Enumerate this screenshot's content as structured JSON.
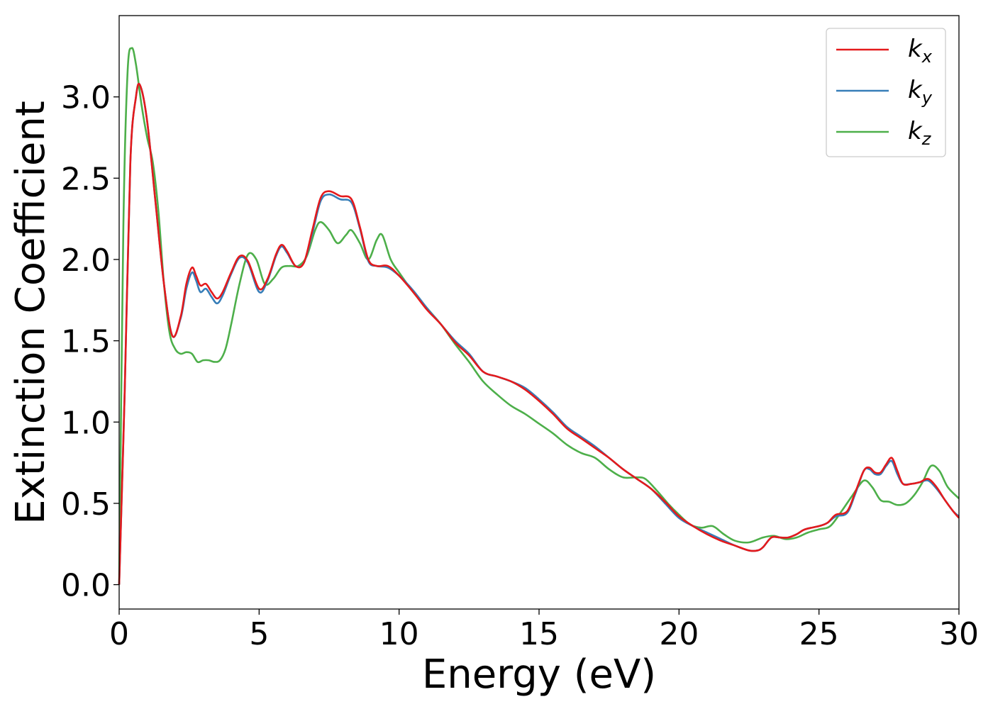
{
  "chart_data": {
    "type": "line",
    "xlabel": "Energy (eV)",
    "ylabel": "Extinction Coefficient",
    "xlim": [
      0,
      30
    ],
    "ylim": [
      -0.15,
      3.5
    ],
    "x_ticks": [
      0,
      5,
      10,
      15,
      20,
      25,
      30
    ],
    "x_tick_labels": [
      "0",
      "5",
      "10",
      "15",
      "20",
      "25",
      "30"
    ],
    "y_ticks": [
      0.0,
      0.5,
      1.0,
      1.5,
      2.0,
      2.5,
      3.0
    ],
    "y_tick_labels": [
      "0.0",
      "0.5",
      "1.0",
      "1.5",
      "2.0",
      "2.5",
      "3.0"
    ],
    "grid": false,
    "legend_position": "top-right",
    "series": [
      {
        "name_base": "k",
        "name_sub": "x",
        "color": "#e41a1c",
        "x": [
          0,
          0.2,
          0.4,
          0.6,
          0.75,
          1.0,
          1.3,
          1.6,
          1.9,
          2.2,
          2.4,
          2.6,
          2.75,
          2.9,
          3.1,
          3.3,
          3.5,
          3.7,
          4.0,
          4.3,
          4.6,
          5.0,
          5.3,
          5.6,
          5.8,
          6.0,
          6.3,
          6.6,
          6.9,
          7.2,
          7.5,
          7.9,
          8.3,
          8.6,
          8.9,
          9.2,
          9.6,
          10.0,
          10.5,
          11.0,
          11.5,
          12.0,
          12.5,
          13.0,
          13.5,
          14.0,
          14.5,
          15.0,
          15.5,
          16.0,
          16.5,
          17.0,
          17.5,
          18.0,
          18.5,
          19.0,
          19.5,
          20.0,
          20.5,
          21.0,
          21.5,
          22.0,
          22.5,
          22.8,
          23.0,
          23.3,
          23.6,
          23.9,
          24.2,
          24.5,
          25.0,
          25.3,
          25.6,
          26.0,
          26.3,
          26.6,
          26.8,
          27.0,
          27.2,
          27.4,
          27.6,
          27.8,
          28.0,
          28.3,
          28.6,
          28.9,
          29.2,
          29.5,
          29.8,
          30.0
        ],
        "y": [
          0.0,
          1.2,
          2.6,
          3.0,
          3.07,
          2.85,
          2.35,
          1.85,
          1.53,
          1.65,
          1.85,
          1.95,
          1.9,
          1.84,
          1.85,
          1.8,
          1.76,
          1.8,
          1.92,
          2.02,
          1.99,
          1.82,
          1.88,
          2.03,
          2.09,
          2.05,
          1.96,
          1.98,
          2.18,
          2.38,
          2.42,
          2.39,
          2.37,
          2.2,
          2.0,
          1.96,
          1.96,
          1.9,
          1.8,
          1.69,
          1.6,
          1.49,
          1.41,
          1.31,
          1.28,
          1.25,
          1.2,
          1.13,
          1.05,
          0.96,
          0.9,
          0.84,
          0.78,
          0.71,
          0.65,
          0.59,
          0.51,
          0.42,
          0.36,
          0.31,
          0.27,
          0.24,
          0.21,
          0.21,
          0.23,
          0.29,
          0.29,
          0.29,
          0.31,
          0.34,
          0.36,
          0.38,
          0.43,
          0.45,
          0.57,
          0.7,
          0.72,
          0.69,
          0.69,
          0.74,
          0.78,
          0.7,
          0.62,
          0.62,
          0.63,
          0.65,
          0.6,
          0.52,
          0.45,
          0.41
        ]
      },
      {
        "name_base": "k",
        "name_sub": "y",
        "color": "#377eb8",
        "x": [
          0,
          0.2,
          0.4,
          0.6,
          0.75,
          1.0,
          1.3,
          1.6,
          1.9,
          2.2,
          2.4,
          2.6,
          2.75,
          2.9,
          3.1,
          3.3,
          3.5,
          3.7,
          4.0,
          4.3,
          4.6,
          5.0,
          5.3,
          5.6,
          5.8,
          6.0,
          6.3,
          6.6,
          6.9,
          7.2,
          7.5,
          7.9,
          8.3,
          8.6,
          8.9,
          9.2,
          9.6,
          10.0,
          10.5,
          11.0,
          11.5,
          12.0,
          12.5,
          13.0,
          13.5,
          14.0,
          14.5,
          15.0,
          15.5,
          16.0,
          16.5,
          17.0,
          17.5,
          18.0,
          18.5,
          19.0,
          19.5,
          20.0,
          20.5,
          21.0,
          21.5,
          22.0,
          22.5,
          22.8,
          23.0,
          23.3,
          23.6,
          23.9,
          24.2,
          24.5,
          25.0,
          25.3,
          25.6,
          26.0,
          26.3,
          26.6,
          26.8,
          27.0,
          27.2,
          27.4,
          27.6,
          27.8,
          28.0,
          28.3,
          28.6,
          28.9,
          29.2,
          29.5,
          29.8,
          30.0
        ],
        "y": [
          0.0,
          1.2,
          2.6,
          3.0,
          3.07,
          2.85,
          2.35,
          1.85,
          1.53,
          1.64,
          1.82,
          1.92,
          1.87,
          1.8,
          1.82,
          1.77,
          1.73,
          1.78,
          1.91,
          2.01,
          1.98,
          1.8,
          1.87,
          2.02,
          2.08,
          2.04,
          1.96,
          1.98,
          2.16,
          2.36,
          2.4,
          2.37,
          2.35,
          2.19,
          1.99,
          1.96,
          1.95,
          1.9,
          1.81,
          1.7,
          1.6,
          1.5,
          1.42,
          1.31,
          1.28,
          1.25,
          1.21,
          1.14,
          1.06,
          0.97,
          0.91,
          0.85,
          0.78,
          0.71,
          0.65,
          0.59,
          0.5,
          0.41,
          0.36,
          0.32,
          0.28,
          0.24,
          0.21,
          0.21,
          0.23,
          0.29,
          0.29,
          0.29,
          0.31,
          0.34,
          0.36,
          0.38,
          0.42,
          0.44,
          0.56,
          0.7,
          0.71,
          0.68,
          0.68,
          0.73,
          0.76,
          0.68,
          0.62,
          0.62,
          0.63,
          0.64,
          0.59,
          0.52,
          0.45,
          0.42
        ]
      },
      {
        "name_base": "k",
        "name_sub": "z",
        "color": "#4daf4a",
        "x": [
          0,
          0.15,
          0.3,
          0.45,
          0.6,
          0.8,
          1.0,
          1.2,
          1.4,
          1.6,
          1.8,
          2.0,
          2.2,
          2.4,
          2.6,
          2.8,
          3.0,
          3.2,
          3.4,
          3.6,
          3.8,
          4.0,
          4.3,
          4.6,
          4.9,
          5.2,
          5.5,
          5.8,
          6.1,
          6.4,
          6.7,
          7.0,
          7.2,
          7.5,
          7.8,
          8.1,
          8.3,
          8.6,
          8.9,
          9.2,
          9.4,
          9.7,
          10.0,
          10.5,
          11.0,
          11.5,
          12.0,
          12.5,
          13.0,
          13.5,
          14.0,
          14.5,
          15.0,
          15.5,
          16.0,
          16.5,
          17.0,
          17.5,
          18.0,
          18.5,
          18.8,
          19.2,
          19.6,
          20.0,
          20.4,
          20.8,
          21.2,
          21.6,
          22.0,
          22.5,
          23.0,
          23.4,
          23.8,
          24.2,
          24.6,
          25.0,
          25.4,
          25.8,
          26.2,
          26.6,
          26.9,
          27.2,
          27.5,
          27.8,
          28.1,
          28.4,
          28.7,
          29.0,
          29.3,
          29.6,
          30.0
        ],
        "y": [
          0.0,
          2.2,
          3.15,
          3.3,
          3.2,
          2.95,
          2.75,
          2.6,
          2.3,
          1.85,
          1.55,
          1.45,
          1.42,
          1.43,
          1.42,
          1.37,
          1.38,
          1.38,
          1.37,
          1.38,
          1.45,
          1.6,
          1.85,
          2.03,
          2.0,
          1.85,
          1.88,
          1.95,
          1.96,
          1.96,
          2.02,
          2.18,
          2.23,
          2.18,
          2.1,
          2.15,
          2.18,
          2.1,
          2.0,
          2.12,
          2.15,
          2.0,
          1.92,
          1.8,
          1.7,
          1.6,
          1.48,
          1.37,
          1.25,
          1.17,
          1.1,
          1.05,
          0.99,
          0.93,
          0.86,
          0.81,
          0.78,
          0.71,
          0.66,
          0.66,
          0.65,
          0.58,
          0.5,
          0.43,
          0.37,
          0.35,
          0.36,
          0.31,
          0.27,
          0.26,
          0.29,
          0.3,
          0.28,
          0.29,
          0.32,
          0.34,
          0.36,
          0.45,
          0.55,
          0.64,
          0.6,
          0.52,
          0.51,
          0.49,
          0.5,
          0.55,
          0.63,
          0.73,
          0.7,
          0.6,
          0.53
        ]
      }
    ]
  }
}
